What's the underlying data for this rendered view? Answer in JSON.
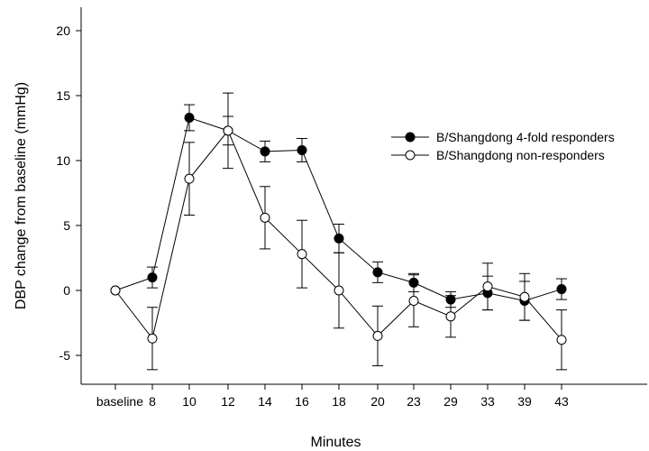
{
  "chart_data": {
    "type": "line",
    "title": "",
    "xlabel": "Minutes",
    "ylabel": "DBP change from baseline (mmHg)",
    "categories": [
      "baseline",
      "8",
      "10",
      "12",
      "14",
      "16",
      "18",
      "20",
      "23",
      "29",
      "33",
      "39",
      "43"
    ],
    "ylim": [
      -7.5,
      21.5
    ],
    "yticks": [
      -5,
      0,
      5,
      10,
      15,
      20
    ],
    "grid": false,
    "legend_position": "right",
    "error_bars": true,
    "series": [
      {
        "name": "B/Shangdong 4-fold responders",
        "marker": "filled-circle",
        "color": "#000000",
        "values": [
          0,
          1.0,
          13.3,
          12.3,
          10.7,
          10.8,
          4.0,
          1.4,
          0.6,
          -0.7,
          -0.2,
          -0.8,
          0.1
        ],
        "errors": [
          0,
          0.8,
          1.0,
          1.1,
          0.8,
          0.9,
          1.1,
          0.8,
          0.7,
          0.6,
          1.3,
          1.5,
          0.8
        ]
      },
      {
        "name": "B/Shangdong non-responders",
        "marker": "open-circle",
        "color": "#000000",
        "values": [
          0,
          -3.7,
          8.6,
          12.3,
          5.6,
          2.8,
          0.0,
          -3.5,
          -0.8,
          -2.0,
          0.3,
          -0.5,
          -3.8
        ],
        "errors": [
          0,
          2.4,
          2.8,
          2.9,
          2.4,
          2.6,
          2.9,
          2.3,
          2.0,
          1.6,
          1.8,
          1.8,
          2.3
        ]
      }
    ]
  }
}
